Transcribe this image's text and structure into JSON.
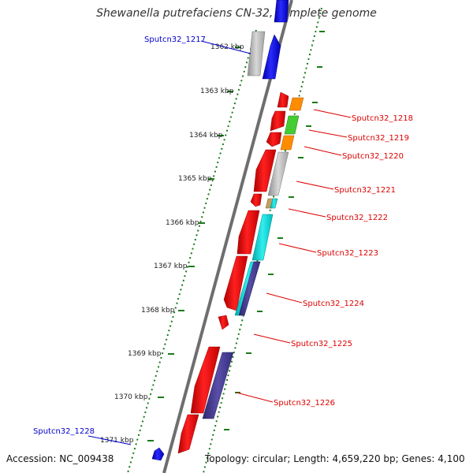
{
  "title": "Shewanella putrefaciens CN-32, complete genome",
  "accession": "Accession: NC_009438",
  "topology": "Topology: circular; Length: 4,659,220 bp; Genes: 4,100",
  "scale_labels": [
    "1362 kbp",
    "1363 kbp",
    "1364 kbp",
    "1365 kbp",
    "1366 kbp",
    "1367 kbp",
    "1368 kbp",
    "1369 kbp",
    "1370 kbp",
    "1371 kbp"
  ],
  "gene_labels": {
    "blue": [
      "Sputcn32_1217",
      "Sputcn32_1228"
    ],
    "red": [
      "Sputcn32_1218",
      "Sputcn32_1219",
      "Sputcn32_1220",
      "Sputcn32_1221",
      "Sputcn32_1222",
      "Sputcn32_1223",
      "Sputcn32_1224",
      "Sputcn32_1225",
      "Sputcn32_1226"
    ]
  },
  "colors": {
    "forward_strand": "#0000ee",
    "reverse_strand": "#ee0000",
    "backbone": "#777777",
    "tick": "#1a7a1a",
    "orange": "#ff8c00",
    "green": "#44cc33",
    "cyan": "#22cccc",
    "purple": "#4a3f8f",
    "gray": "#b8b8b8"
  }
}
